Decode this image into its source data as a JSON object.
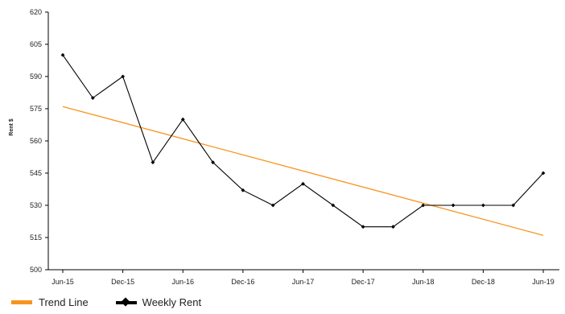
{
  "chart_data": {
    "type": "line",
    "ylabel": "Rent $",
    "ylim": [
      500,
      620
    ],
    "yticks": [
      "500",
      "515",
      "530",
      "545",
      "560",
      "575",
      "590",
      "605",
      "620"
    ],
    "x_tick_labels": [
      "Jun-15",
      "Dec-15",
      "Jun-16",
      "Dec-16",
      "Jun-17",
      "Dec-17",
      "Jun-18",
      "Dec-18",
      "Jun-19"
    ],
    "x_periods": [
      "Jun-15",
      "Sep-15",
      "Dec-15",
      "Mar-16",
      "Jun-16",
      "Sep-16",
      "Dec-16",
      "Mar-17",
      "Jun-17",
      "Sep-17",
      "Dec-17",
      "Mar-18",
      "Jun-18",
      "Sep-18",
      "Dec-18",
      "Mar-19",
      "Jun-19"
    ],
    "series": [
      {
        "name": "Weekly Rent",
        "color": "#000000",
        "marker": "diamond",
        "values": [
          600,
          580,
          590,
          550,
          570,
          550,
          537,
          530,
          540,
          530,
          520,
          520,
          530,
          530,
          530,
          530,
          545
        ]
      },
      {
        "name": "Trend Line",
        "color": "#f7941d",
        "values": [
          576,
          516
        ]
      }
    ],
    "grid": false,
    "legend_position": "bottom-left"
  }
}
